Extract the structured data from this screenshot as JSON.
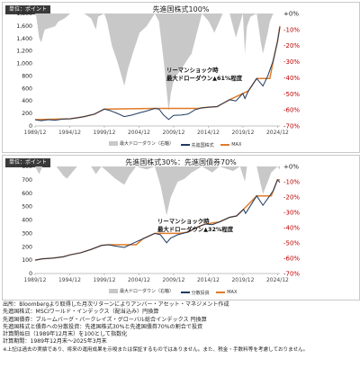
{
  "chart_data": [
    {
      "type": "line",
      "unit_label": "単位：ポイント",
      "title": "先進国株式100%",
      "x_ticks": [
        "1989/12",
        "1994/12",
        "1999/12",
        "2004/12",
        "2009/12",
        "2014/12",
        "2019/12",
        "2024/12"
      ],
      "x_range": [
        1989.92,
        2025.25
      ],
      "y_left_ticks": [
        "0",
        "200",
        "400",
        "600",
        "800",
        "1,000",
        "1,200",
        "1,400",
        "1,600",
        "1,800"
      ],
      "y_left_range": [
        0,
        1800
      ],
      "y_right_ticks": [
        "+0%",
        "-10%",
        "-20%",
        "-30%",
        "-40%",
        "-50%",
        "-60%",
        "-70%"
      ],
      "y_right_range": [
        -70,
        0
      ],
      "annotation": [
        "リーマンショック時",
        "最大ドローダウン▲61%程度"
      ],
      "legend": [
        "最大ドローダウン（右軸）",
        "先進国株式",
        "MAX"
      ],
      "colors": {
        "drawdown": "#c8c8c8",
        "series": "#1f3a5f",
        "max": "#e07b2a",
        "right_axis": "#c00000"
      },
      "series": [
        {
          "name": "先進国株式",
          "x": [
            1989.92,
            1990.8,
            1991.8,
            1992.8,
            1993.9,
            1995,
            1996,
            1997,
            1998.5,
            1999.9,
            2000.8,
            2001.8,
            2002.8,
            2003.9,
            2005,
            2006,
            2007.2,
            2007.8,
            2008.5,
            2009.2,
            2009.9,
            2011,
            2012,
            2013,
            2014,
            2015,
            2016.2,
            2017,
            2018,
            2018.9,
            2019.9,
            2020.2,
            2020.7,
            2021.9,
            2022.8,
            2023.5,
            2024.3,
            2024.9,
            2025.25
          ],
          "values": [
            100,
            85,
            100,
            92,
            110,
            115,
            130,
            150,
            190,
            270,
            245,
            200,
            150,
            175,
            210,
            240,
            280,
            270,
            170,
            105,
            170,
            175,
            190,
            260,
            290,
            300,
            310,
            360,
            420,
            400,
            520,
            440,
            560,
            760,
            640,
            800,
            1050,
            1350,
            1580
          ]
        },
        {
          "name": "MAX",
          "x": [
            1989.92,
            1995,
            1997,
            1998.5,
            1999.9,
            2007.2,
            2013.4,
            2014,
            2015,
            2016.2,
            2017,
            2018,
            2019.9,
            2020.7,
            2021.9,
            2023.8,
            2024.3,
            2024.9,
            2025.25
          ],
          "values": [
            100,
            115,
            150,
            190,
            270,
            280,
            280,
            290,
            300,
            310,
            360,
            420,
            520,
            560,
            760,
            760,
            1050,
            1350,
            1600
          ]
        },
        {
          "name": "最大ドローダウン",
          "x": [
            1989.92,
            1990.1,
            1990.5,
            1990.8,
            1991.3,
            1992.8,
            1993.3,
            1994.2,
            1995,
            1996,
            1997,
            1998,
            1998.7,
            1999,
            1999.9,
            2000.3,
            2001,
            2001.8,
            2002.8,
            2003.3,
            2004,
            2005,
            2006,
            2007.2,
            2007.8,
            2008.5,
            2009.2,
            2009.5,
            2010,
            2011,
            2011.7,
            2012.5,
            2013.4,
            2014,
            2015,
            2015.8,
            2016.2,
            2017,
            2018,
            2018.9,
            2019.9,
            2020.2,
            2020.5,
            2021,
            2021.9,
            2022.5,
            2022.8,
            2023.5,
            2023.8,
            2024.3,
            2024.9,
            2025.25
          ],
          "values": [
            0,
            -2,
            -15,
            -18,
            -10,
            -8,
            -5,
            -3,
            0,
            0,
            0,
            -3,
            -10,
            -2,
            0,
            -5,
            -20,
            -30,
            -45,
            -35,
            -25,
            -12,
            -8,
            0,
            -5,
            -30,
            -61,
            -50,
            -40,
            -35,
            -30,
            -25,
            -10,
            0,
            -5,
            -12,
            -8,
            0,
            0,
            -15,
            0,
            -25,
            -8,
            -2,
            0,
            -18,
            -25,
            -12,
            -5,
            0,
            0,
            0
          ]
        }
      ]
    },
    {
      "type": "line",
      "unit_label": "単位：ポイント",
      "title": "先進国株式30%：先進国債券70%",
      "x_ticks": [
        "1989/12",
        "1994/12",
        "1999/12",
        "2004/12",
        "2009/12",
        "2014/12",
        "2019/12",
        "2024/12"
      ],
      "x_range": [
        1989.92,
        2025.25
      ],
      "y_left_ticks": [
        "0",
        "100",
        "200",
        "300",
        "400",
        "500",
        "600",
        "700",
        "800"
      ],
      "y_left_range": [
        0,
        800
      ],
      "y_right_ticks": [
        "+0%",
        "-10%",
        "-20%",
        "-30%",
        "-40%",
        "-50%",
        "-60%",
        "-70%"
      ],
      "y_right_range": [
        -70,
        0
      ],
      "annotation": [
        "リーマンショック時",
        "最大ドローダウン▲32%程度"
      ],
      "legend": [
        "最大ドローダウン（右軸）",
        "分散投資",
        "MAX"
      ],
      "colors": {
        "drawdown": "#c8c8c8",
        "series": "#1f3a5f",
        "max": "#e07b2a",
        "right_axis": "#c00000"
      },
      "series": [
        {
          "name": "分散投資",
          "x": [
            1989.92,
            1991,
            1992.5,
            1994,
            1995,
            1996.5,
            1998,
            1999.5,
            2000.5,
            2001.5,
            2002.8,
            2004,
            2005.5,
            2007.2,
            2008,
            2008.9,
            2009.5,
            2010.5,
            2012,
            2013.5,
            2014.5,
            2015.5,
            2016.5,
            2018,
            2019,
            2020,
            2020.3,
            2021.9,
            2022.8,
            2023.5,
            2024.3,
            2024.9,
            2025.25
          ],
          "values": [
            100,
            110,
            115,
            125,
            140,
            155,
            180,
            210,
            215,
            205,
            195,
            225,
            260,
            300,
            290,
            230,
            265,
            290,
            310,
            350,
            370,
            365,
            385,
            420,
            430,
            480,
            450,
            580,
            510,
            560,
            620,
            700,
            680
          ]
        },
        {
          "name": "MAX",
          "x": [
            1989.92,
            1991,
            1992.5,
            1994,
            1995,
            1996.5,
            1998,
            1999.5,
            2000.5,
            2004.5,
            2005.5,
            2007.2,
            2010.8,
            2012,
            2013.5,
            2014.5,
            2016.5,
            2018,
            2019,
            2020,
            2021.9,
            2024,
            2024.3,
            2024.9,
            2025.25
          ],
          "values": [
            100,
            110,
            115,
            125,
            140,
            155,
            180,
            210,
            215,
            215,
            260,
            300,
            300,
            310,
            350,
            370,
            385,
            420,
            430,
            480,
            580,
            580,
            620,
            700,
            700
          ]
        },
        {
          "name": "最大ドローダウン",
          "x": [
            1989.92,
            1990.5,
            1991,
            1993,
            1994,
            1994.5,
            1996,
            1998,
            1998.7,
            1999.5,
            2000.5,
            2001.5,
            2002.8,
            2003.5,
            2004.5,
            2006,
            2007.2,
            2008,
            2008.9,
            2009.5,
            2010.5,
            2011.5,
            2012.5,
            2014,
            2015.5,
            2016.5,
            2018.5,
            2019.5,
            2020.2,
            2020.5,
            2021.9,
            2022.8,
            2023.5,
            2024,
            2024.9,
            2025.25
          ],
          "values": [
            0,
            -5,
            0,
            0,
            -6,
            -8,
            0,
            0,
            -5,
            0,
            -4,
            -8,
            -12,
            -6,
            0,
            -2,
            0,
            -12,
            -32,
            -20,
            -10,
            -8,
            -4,
            0,
            -4,
            0,
            -3,
            0,
            -10,
            0,
            0,
            -18,
            -10,
            -4,
            0,
            -2
          ]
        }
      ]
    }
  ],
  "notes": [
    "出所：Bloombergより取得した月次リターンによりアンバー・アセット・マネジメント作成",
    "先進国株式：MSCIワールド・インデックス（配当込み）円換算",
    "先進国債券：ブルームバーグ・バークレイズ・グローバル総合インデックス 円換算",
    "先進国株式と債券への分散投資：先進国株式30%と先進国債券70%の割合で投資",
    "計算開始日（1989年12月末）を100として指数化",
    "計算期間：1989年12月末～2025年3月末",
    "※上記は過去の実績であり、将来の運用成果を示唆または保証するものではありません。また、税金・手数料等を考慮しておりません。"
  ]
}
